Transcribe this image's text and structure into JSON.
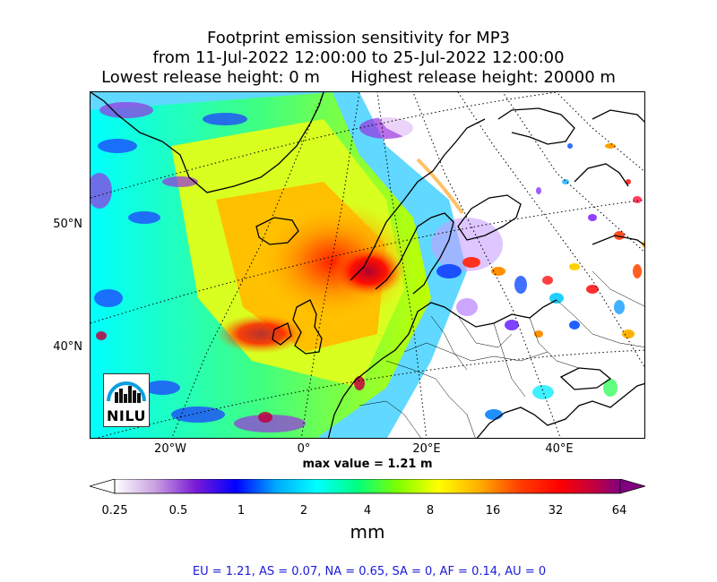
{
  "title": {
    "line1": "Footprint emission sensitivity for MP3",
    "line2": "from 11-Jul-2022 12:00:00 to 25-Jul-2022 12:00:00",
    "line3": "Lowest release height: 0 m      Highest release height: 20000 m"
  },
  "map": {
    "lat_labels": [
      "50°N",
      "40°N"
    ],
    "lon_labels": [
      "20°W",
      "0°",
      "20°E",
      "40°E"
    ],
    "lat_values": [
      50,
      40
    ],
    "lon_values": [
      -20,
      0,
      20,
      40
    ]
  },
  "max_value_text": "max value = 1.21 m",
  "colorbar": {
    "ticks": [
      "0.25",
      "0.5",
      "1",
      "2",
      "4",
      "8",
      "16",
      "32",
      "64"
    ],
    "unit": "mm",
    "colors": [
      "#ffffff",
      "#c9a0e0",
      "#7a1ad6",
      "#0000ff",
      "#00aaff",
      "#00ffff",
      "#00ff80",
      "#7fff00",
      "#ffff00",
      "#ffb000",
      "#ff4000",
      "#ff0000",
      "#c00040",
      "#800080"
    ]
  },
  "regions_text": "EU = 1.21,  AS = 0.07,  NA = 0.65,  SA = 0,  AF = 0.14,  AU = 0",
  "logo": {
    "text": "NILU"
  }
}
